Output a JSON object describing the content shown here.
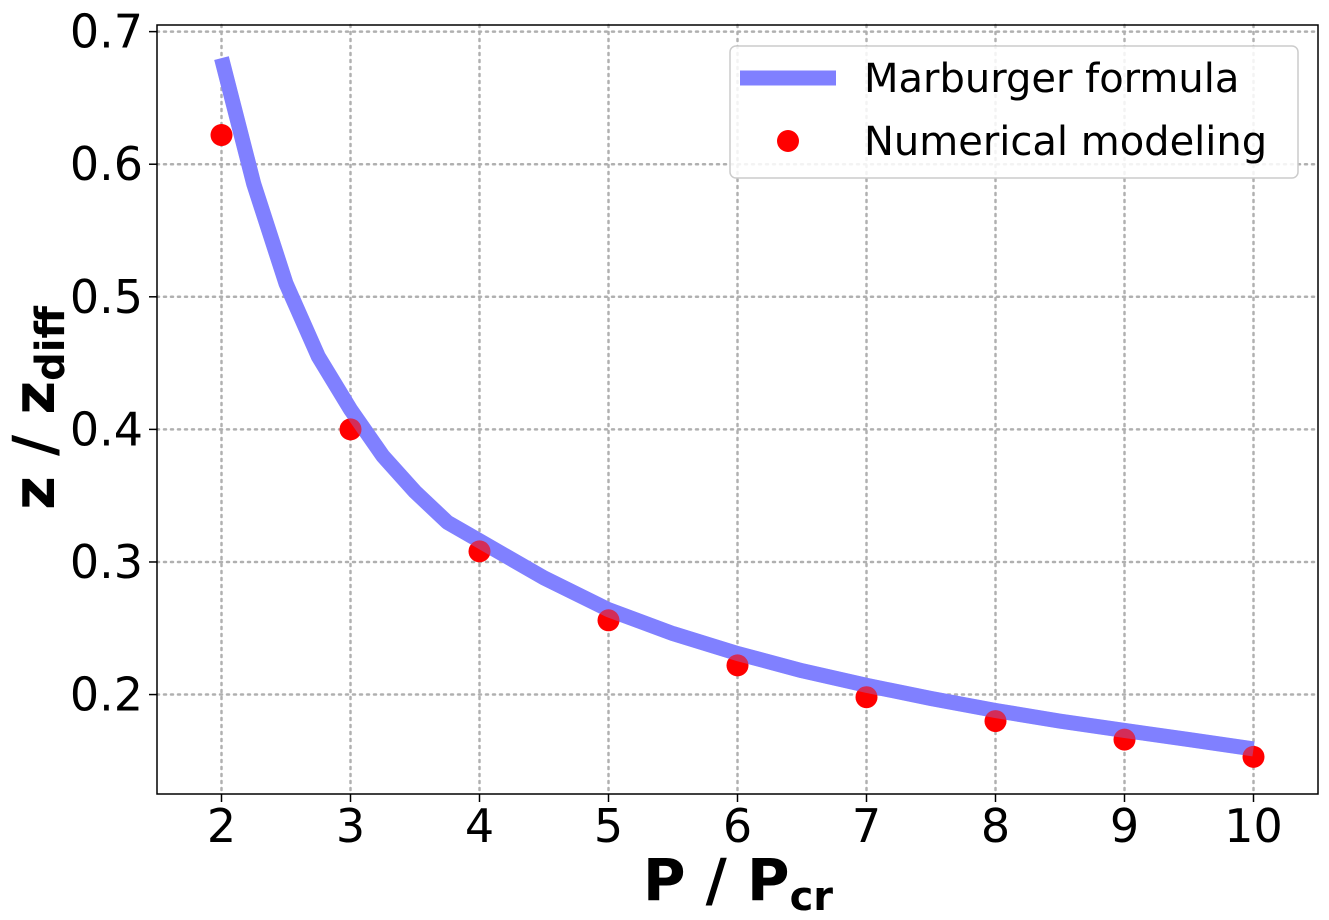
{
  "chart_data": {
    "type": "line",
    "xlabel": "P / P",
    "xlabel_sub": "cr",
    "ylabel": "z / z",
    "ylabel_sub": "diff",
    "xlim": [
      1.5,
      10.5
    ],
    "ylim": [
      0.125,
      0.705
    ],
    "xticks": [
      2,
      3,
      4,
      5,
      6,
      7,
      8,
      9,
      10
    ],
    "xtick_labels": [
      "2",
      "3",
      "4",
      "5",
      "6",
      "7",
      "8",
      "9",
      "10"
    ],
    "yticks": [
      0.2,
      0.3,
      0.4,
      0.5,
      0.6,
      0.7
    ],
    "ytick_labels": [
      "0.2",
      "0.3",
      "0.4",
      "0.5",
      "0.6",
      "0.7"
    ],
    "grid": true,
    "legend_position": "top-right",
    "series": [
      {
        "name": "Marburger formula",
        "kind": "line",
        "color": "#8080ff",
        "x": [
          2.0,
          2.25,
          2.5,
          2.75,
          3.0,
          3.25,
          3.5,
          3.75,
          4.0,
          4.5,
          5.0,
          5.5,
          6.0,
          6.5,
          7.0,
          7.5,
          8.0,
          8.5,
          9.0,
          9.5,
          10.0
        ],
        "y": [
          0.68,
          0.585,
          0.51,
          0.455,
          0.415,
          0.38,
          0.353,
          0.33,
          0.316,
          0.288,
          0.264,
          0.246,
          0.231,
          0.218,
          0.207,
          0.197,
          0.188,
          0.18,
          0.173,
          0.166,
          0.159
        ]
      },
      {
        "name": "Numerical modeling",
        "kind": "scatter",
        "color": "#ff0000",
        "x": [
          2,
          3,
          4,
          5,
          6,
          7,
          8,
          9,
          10
        ],
        "y": [
          0.622,
          0.4,
          0.308,
          0.256,
          0.222,
          0.198,
          0.18,
          0.166,
          0.153
        ]
      }
    ]
  }
}
